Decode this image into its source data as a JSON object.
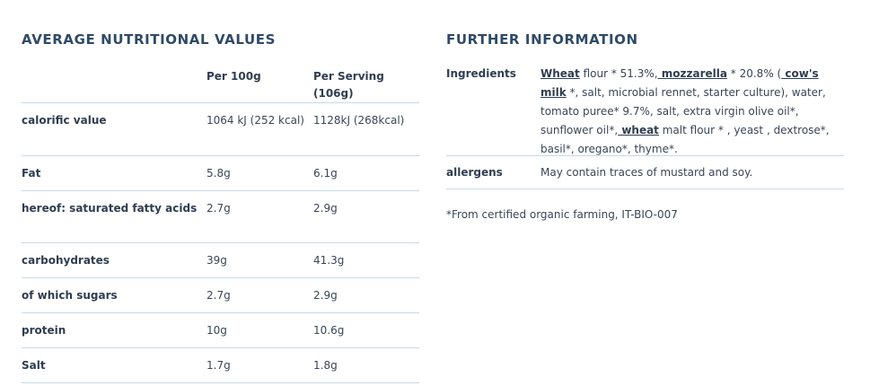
{
  "nutrition": {
    "heading": "AVERAGE NUTRITIONAL VALUES",
    "col_per100": "Per 100g",
    "col_serving": "Per Serving (106g)",
    "rows": [
      {
        "name": "calorific value",
        "per100": "1064 kJ (252 kcal)",
        "serving": "1128kJ (268kcal)"
      },
      {
        "name": "Fat",
        "per100": "5.8g",
        "serving": "6.1g"
      },
      {
        "name": "hereof: saturated fatty acids",
        "per100": "2.7g",
        "serving": "2.9g"
      },
      {
        "name": "carbohydrates",
        "per100": "39g",
        "serving": "41.3g"
      },
      {
        "name": "of which sugars",
        "per100": "2.7g",
        "serving": "2.9g"
      },
      {
        "name": "protein",
        "per100": "10g",
        "serving": "10.6g"
      },
      {
        "name": "Salt",
        "per100": "1.7g",
        "serving": "1.8g"
      }
    ]
  },
  "further": {
    "heading": "FURTHER INFORMATION",
    "ingredients_label": "Ingredients",
    "ingredients": {
      "wheat1": "Wheat",
      "t1": " flour * 51.3%,",
      "mozzarella": " mozzarella",
      "t2": " * 20.8% (",
      "cows_milk": " cow's milk",
      "t3": " *, salt, microbial rennet, starter culture), water, tomato puree* 9.7%, salt, extra virgin olive oil*, sunflower oil*,",
      "wheat2": " wheat",
      "t4": " malt flour * , yeast , dextrose*, basil*, oregano*, thyme*."
    },
    "allergens_label": "allergens",
    "allergens": "May contain traces of mustard and soy.",
    "note": "*From certified organic farming, IT-BIO-007"
  }
}
